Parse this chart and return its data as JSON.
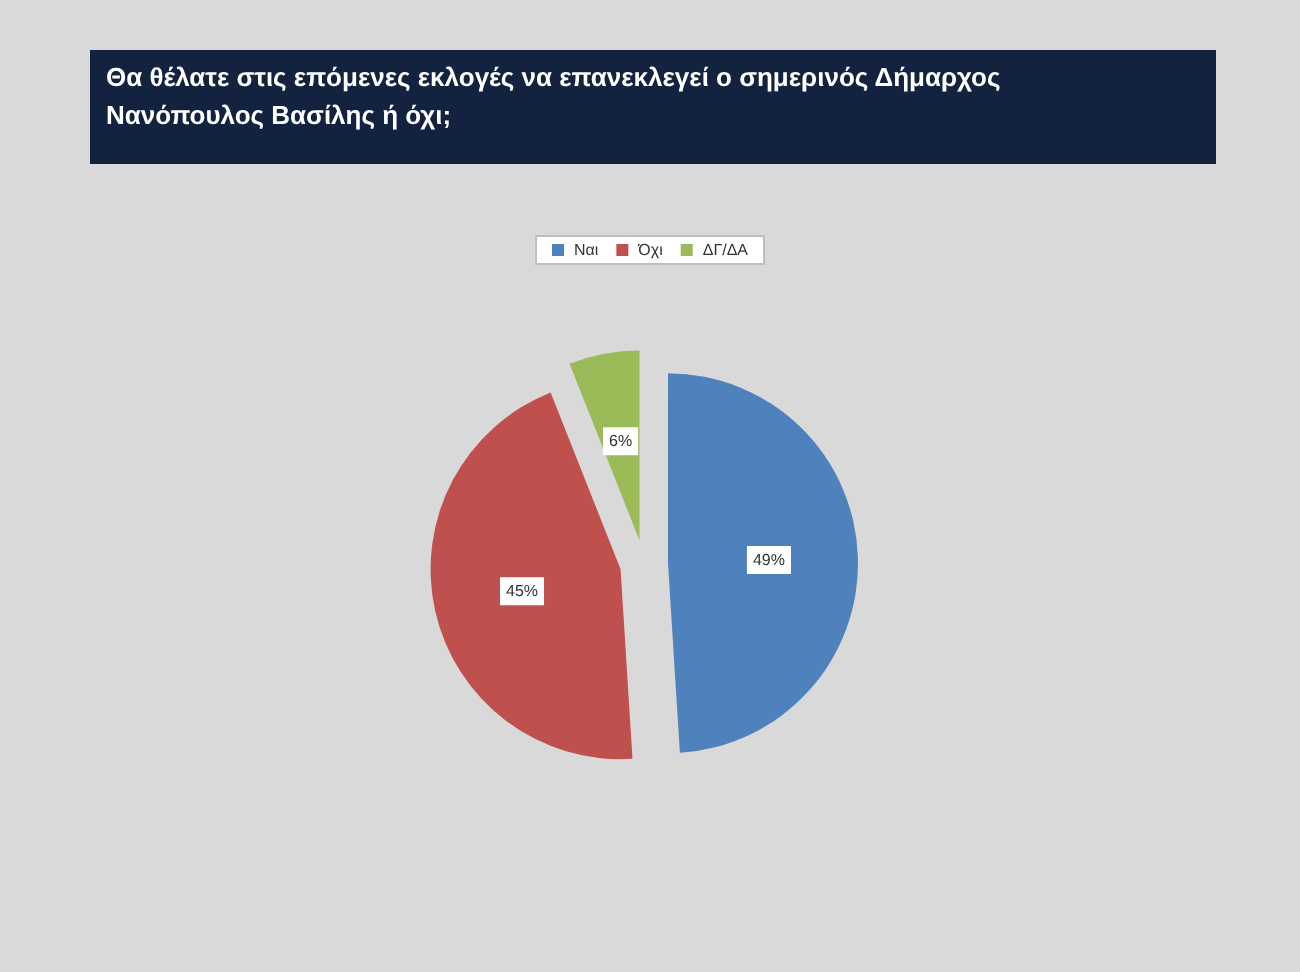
{
  "chart_data": {
    "type": "pie",
    "title": "Θα θέλατε στις επόμενες εκλογές να επανεκλεγεί ο σημερινός Δήμαρχος Νανόπουλος Βασίλης ή όχι;",
    "categories": [
      "Ναι",
      "Όχι",
      "ΔΓ/ΔΑ"
    ],
    "values": [
      49,
      45,
      6
    ],
    "colors": [
      "#4f81bd",
      "#c0504d",
      "#9bbb59"
    ],
    "value_labels": [
      "49%",
      "45%",
      "6%"
    ],
    "legend": "top"
  }
}
